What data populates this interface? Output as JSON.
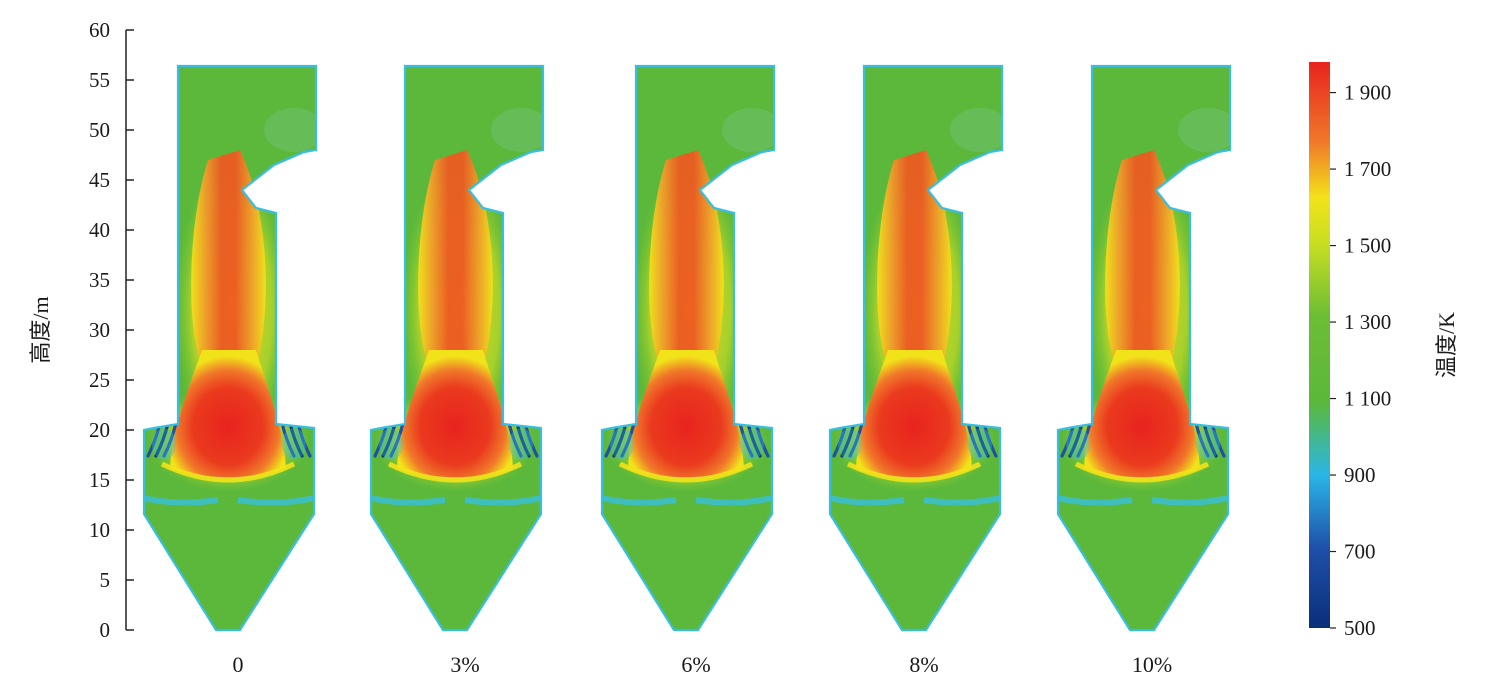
{
  "chart_data": {
    "type": "heatmap",
    "title": "",
    "ylabel": "高度/m",
    "ylim": [
      0,
      60
    ],
    "yticks": [
      0,
      5,
      10,
      15,
      20,
      25,
      30,
      35,
      40,
      45,
      50,
      55,
      60
    ],
    "panels": [
      "0",
      "3%",
      "6%",
      "8%",
      "10%"
    ],
    "colorbar": {
      "label": "温度/K",
      "range": [
        500,
        1980
      ],
      "ticks": [
        "1 900",
        "1 700",
        "1 500",
        "1 300",
        "1 100",
        "900",
        "700",
        "500"
      ],
      "tick_values": [
        1900,
        1700,
        1500,
        1300,
        1100,
        900,
        700,
        500
      ],
      "colormap": "jet"
    },
    "colors": {
      "red": "#e8231f",
      "orange": "#f0782a",
      "yellow": "#f2e21a",
      "green": "#5cb83a",
      "cyan": "#38bfe0",
      "blue": "#1f4fa8",
      "navy": "#0a2f7a"
    }
  }
}
